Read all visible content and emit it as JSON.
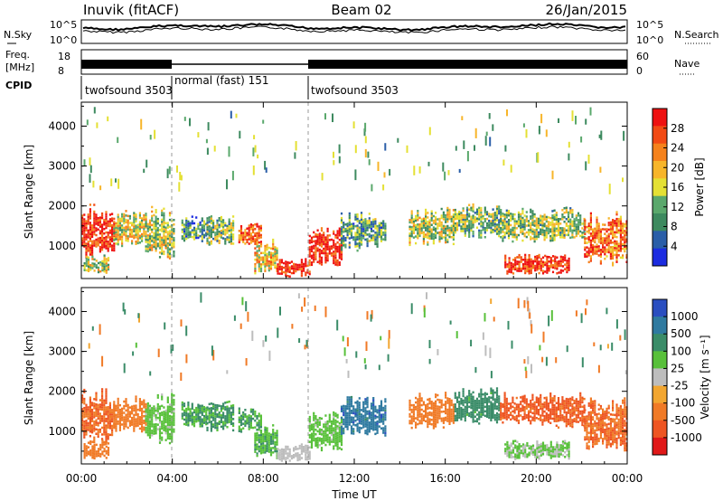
{
  "header": {
    "title": "Inuvik (fitACF)",
    "beam": "Beam 02",
    "date": "26/Jan/2015"
  },
  "noise_panel": {
    "left_label": "N.Sky",
    "right_label": "N.Search",
    "left_ticks": [
      "10^5",
      "10^0"
    ],
    "right_ticks": [
      "10^5",
      "10^0"
    ]
  },
  "freq_panel": {
    "left_label_1": "Freq.",
    "left_label_2": "[MHz]",
    "right_label": "Nave",
    "left_ticks": [
      "18",
      "8"
    ],
    "right_ticks": [
      "60",
      "0"
    ]
  },
  "cpid": {
    "label": "CPID",
    "segments": [
      {
        "name": "twofsound 3503",
        "start_hour": 0,
        "end_hour": 4
      },
      {
        "name": "normal (fast) 151",
        "start_hour": 4,
        "end_hour": 10
      },
      {
        "name": "twofsound 3503",
        "start_hour": 10,
        "end_hour": 24
      }
    ]
  },
  "axes": {
    "ylabel": "Slant Range [km]",
    "xlabel": "Time UT",
    "y_ticks": [
      "1000",
      "2000",
      "3000",
      "4000"
    ],
    "x_ticks": [
      "00:00",
      "04:00",
      "08:00",
      "12:00",
      "16:00",
      "20:00",
      "00:00"
    ]
  },
  "power_scale": {
    "label": "Power [dB]",
    "ticks": [
      "28",
      "24",
      "20",
      "16",
      "12",
      "8",
      "4"
    ],
    "colors": [
      "#ee1111",
      "#f24a14",
      "#f5821c",
      "#f7b52a",
      "#e4e034",
      "#5aa86c",
      "#3d8a5f",
      "#2a5ea8",
      "#1c2ce0"
    ]
  },
  "velocity_scale": {
    "label": "Velocity [m s⁻¹]",
    "ticks": [
      "1000",
      "500",
      "100",
      "25",
      "-25",
      "-100",
      "-500",
      "-1000"
    ],
    "colors": [
      "#2a4ec0",
      "#2f7aa0",
      "#3a8c68",
      "#58c03a",
      "#bdbdbd",
      "#f2a630",
      "#f07a26",
      "#ee5522",
      "#e01818"
    ]
  },
  "chart_data": {
    "type": "heatmap",
    "x_range_hours": [
      0,
      24
    ],
    "y_range_km": [
      180,
      4600
    ],
    "fov_regions": [
      {
        "t0": 0.0,
        "t1": 1.4,
        "r0": 700,
        "r1": 2100,
        "power_db": 27,
        "velocity": -300
      },
      {
        "t0": 0.1,
        "t1": 1.2,
        "r0": 300,
        "r1": 800,
        "power_db": 14,
        "velocity": -200
      },
      {
        "t0": 1.4,
        "t1": 2.8,
        "r0": 1000,
        "r1": 1900,
        "power_db": 16,
        "velocity": -200
      },
      {
        "t0": 2.8,
        "t1": 4.1,
        "r0": 700,
        "r1": 2000,
        "power_db": 14,
        "velocity": 40
      },
      {
        "t0": 4.4,
        "t1": 5.5,
        "r0": 1100,
        "r1": 1800,
        "power_db": 9,
        "velocity": 60
      },
      {
        "t0": 5.5,
        "t1": 6.7,
        "r0": 1000,
        "r1": 1800,
        "power_db": 12,
        "velocity": 80
      },
      {
        "t0": 6.9,
        "t1": 7.9,
        "r0": 1000,
        "r1": 1600,
        "power_db": 24,
        "velocity": 60
      },
      {
        "t0": 7.6,
        "t1": 8.6,
        "r0": 300,
        "r1": 1200,
        "power_db": 18,
        "velocity": 50
      },
      {
        "t0": 8.6,
        "t1": 10.0,
        "r0": 250,
        "r1": 700,
        "power_db": 28,
        "velocity": 0
      },
      {
        "t0": 10.0,
        "t1": 11.4,
        "r0": 500,
        "r1": 1500,
        "power_db": 28,
        "velocity": 40
      },
      {
        "t0": 11.4,
        "t1": 13.4,
        "r0": 900,
        "r1": 1900,
        "power_db": 10,
        "velocity": 500
      },
      {
        "t0": 14.4,
        "t1": 16.4,
        "r0": 1000,
        "r1": 2000,
        "power_db": 14,
        "velocity": -150
      },
      {
        "t0": 16.4,
        "t1": 18.4,
        "r0": 1200,
        "r1": 2100,
        "power_db": 12,
        "velocity": 100
      },
      {
        "t0": 18.4,
        "t1": 22.1,
        "r0": 1100,
        "r1": 2000,
        "power_db": 13,
        "velocity": -400
      },
      {
        "t0": 18.6,
        "t1": 21.4,
        "r0": 300,
        "r1": 800,
        "power_db": 27,
        "velocity": 30
      },
      {
        "t0": 22.1,
        "t1": 24.0,
        "r0": 500,
        "r1": 1900,
        "power_db": 23,
        "velocity": -300
      }
    ]
  }
}
